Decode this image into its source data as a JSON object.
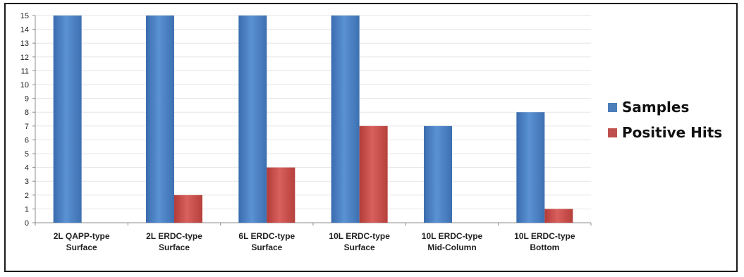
{
  "chart_data": {
    "type": "bar",
    "title": "",
    "xlabel": "",
    "ylabel": "",
    "ylim": [
      0,
      15
    ],
    "yticks": [
      "0",
      "1",
      "2",
      "3",
      "4",
      "5",
      "6",
      "7",
      "8",
      "9",
      "10",
      "11",
      "12",
      "13",
      "14",
      "15"
    ],
    "grid": true,
    "legend_position": "right",
    "categories": [
      [
        "2L QAPP-type",
        "Surface"
      ],
      [
        "2L ERDC-type",
        "Surface"
      ],
      [
        "6L ERDC-type",
        "Surface"
      ],
      [
        "10L ERDC-type",
        "Surface"
      ],
      [
        "10L ERDC-type",
        "Mid-Column"
      ],
      [
        "10L ERDC-type",
        "Bottom"
      ]
    ],
    "series": [
      {
        "name": "Samples",
        "color": "#4a7ebb",
        "values": [
          15,
          15,
          15,
          15,
          7,
          8
        ]
      },
      {
        "name": "Positive Hits",
        "color": "#c0504d",
        "values": [
          0,
          2,
          4,
          7,
          0,
          1
        ]
      }
    ]
  }
}
